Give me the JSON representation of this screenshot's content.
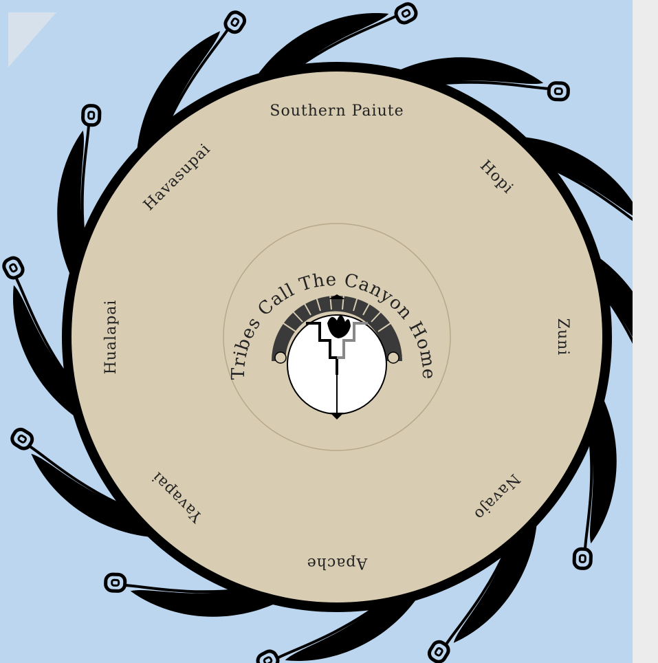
{
  "tribes": [
    {
      "name": "Southern Paiute"
    },
    {
      "name": "Hopi"
    },
    {
      "name": "Zuni"
    },
    {
      "name": "Navajo"
    },
    {
      "name": "Apache"
    },
    {
      "name": "Yavapai"
    },
    {
      "name": "Hualapai"
    },
    {
      "name": "Havasupai"
    }
  ],
  "center_title": "Tribes Call The Canyon Home",
  "colors": {
    "background": "#bcd6ef",
    "disc": "#d8ccb2",
    "ink": "#000000",
    "emblem_fill": "#3a3a3a"
  },
  "icons": [
    "spiral-wave-arm",
    "hand-emblem",
    "stepped-canyon-emblem"
  ]
}
